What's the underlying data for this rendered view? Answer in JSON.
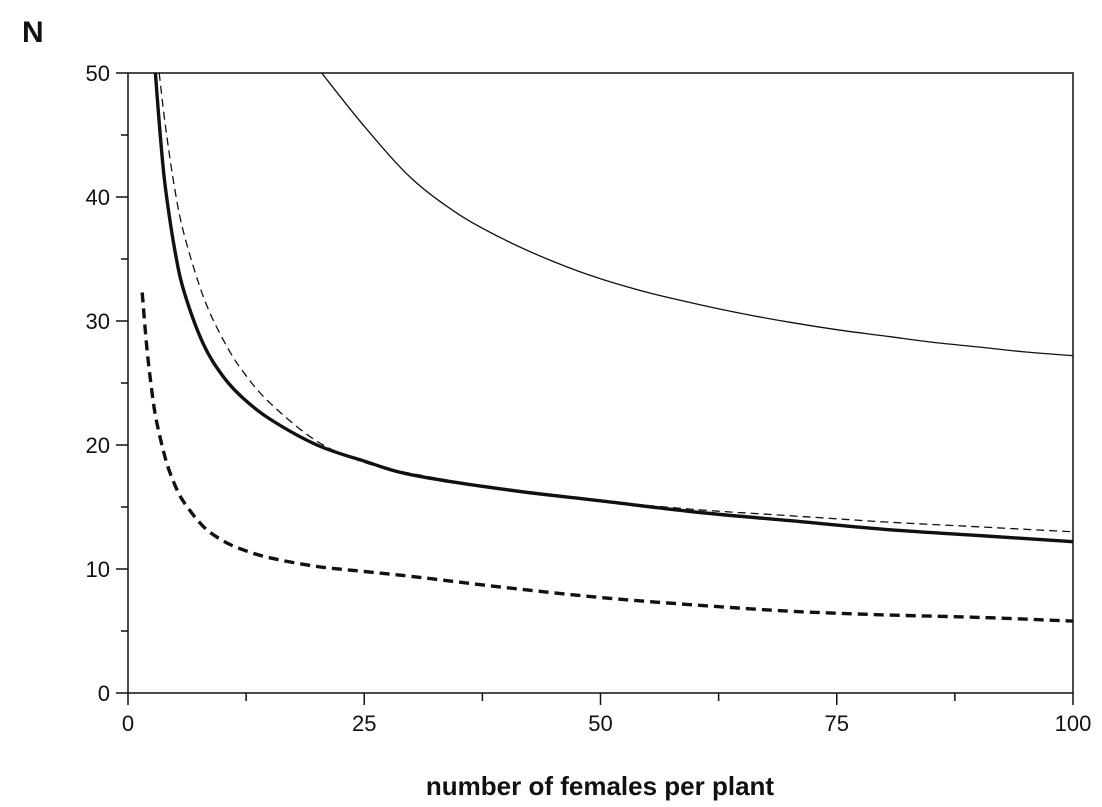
{
  "chart_data": {
    "type": "line",
    "title": "",
    "xlabel": "number of females per plant",
    "ylabel": "N",
    "xlim": [
      0,
      100
    ],
    "ylim": [
      0,
      50
    ],
    "x_ticks": [
      "0",
      "25",
      "50",
      "75",
      "100"
    ],
    "y_ticks": [
      "0",
      "10",
      "20",
      "30",
      "40",
      "50"
    ],
    "grid": false,
    "legend": "none",
    "series": [
      {
        "style": "thin-solid",
        "color": "#111111",
        "x": [
          20.5,
          25,
          30,
          35,
          40,
          45,
          50,
          55,
          60,
          65,
          70,
          75,
          80,
          85,
          90,
          95,
          100
        ],
        "y": [
          50,
          45.7,
          41.5,
          38.6,
          36.5,
          34.8,
          33.4,
          32.3,
          31.4,
          30.6,
          29.9,
          29.3,
          28.8,
          28.3,
          27.9,
          27.5,
          27.2
        ]
      },
      {
        "style": "thin-dashed",
        "color": "#111111",
        "x": [
          3.3,
          4,
          5,
          6,
          8,
          10,
          12,
          15,
          20,
          25,
          30,
          40,
          50,
          60,
          70,
          80,
          90,
          100
        ],
        "y": [
          50,
          45.5,
          40.4,
          36.8,
          31.9,
          28.6,
          26.1,
          23.4,
          20.3,
          18.6,
          17.7,
          16.4,
          15.5,
          14.8,
          14.3,
          13.8,
          13.4,
          13.0
        ]
      },
      {
        "style": "thick-solid",
        "color": "#111111",
        "x": [
          2.9,
          3.5,
          4,
          5,
          6,
          8,
          10,
          12,
          15,
          20,
          25,
          30,
          40,
          50,
          60,
          70,
          80,
          90,
          100
        ],
        "y": [
          50,
          44.2,
          40.5,
          35.5,
          32.2,
          28.1,
          25.6,
          23.9,
          22.1,
          20.0,
          18.7,
          17.6,
          16.4,
          15.5,
          14.6,
          13.9,
          13.2,
          12.7,
          12.2
        ]
      },
      {
        "style": "thick-dashed",
        "color": "#111111",
        "x": [
          1.5,
          2,
          2.5,
          3,
          4,
          5,
          6,
          8,
          10,
          12,
          15,
          20,
          25,
          30,
          40,
          50,
          60,
          70,
          80,
          90,
          100
        ],
        "y": [
          32.3,
          27.8,
          24.5,
          22.0,
          18.8,
          16.7,
          15.3,
          13.4,
          12.3,
          11.6,
          10.9,
          10.2,
          9.8,
          9.4,
          8.5,
          7.7,
          7.1,
          6.6,
          6.3,
          6.1,
          5.8
        ]
      }
    ]
  }
}
